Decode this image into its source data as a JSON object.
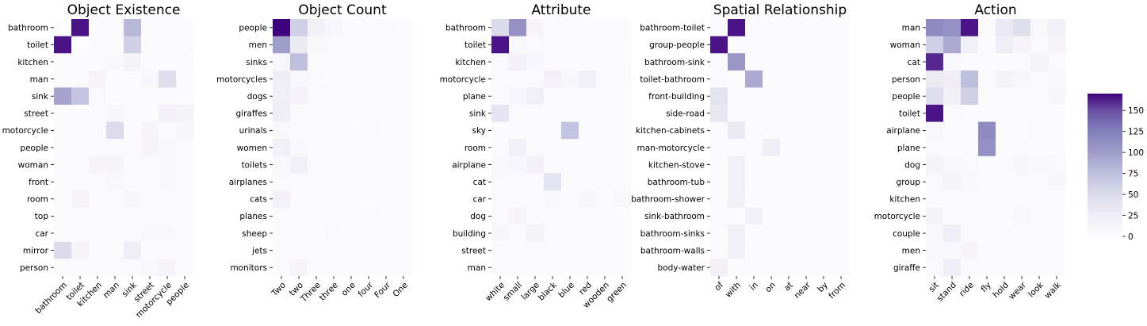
{
  "colors": {
    "low": "#fcfbfd",
    "high": "#3f007d",
    "tick": "#000000"
  },
  "chart_data": [
    {
      "type": "heatmap",
      "title": "Object Existence",
      "rows": [
        "bathroom",
        "toilet",
        "kitchen",
        "man",
        "sink",
        "street",
        "motorcycle",
        "people",
        "woman",
        "front",
        "room",
        "top",
        "car",
        "mirror",
        "person"
      ],
      "cols": [
        "bathroom",
        "toilet",
        "kitchen",
        "man",
        "sink",
        "street",
        "motorcycle",
        "people"
      ],
      "values": [
        [
          0,
          165,
          2,
          3,
          80,
          2,
          1,
          2
        ],
        [
          165,
          0,
          3,
          2,
          60,
          1,
          1,
          2
        ],
        [
          2,
          2,
          1,
          8,
          15,
          2,
          2,
          5
        ],
        [
          5,
          6,
          12,
          2,
          2,
          10,
          45,
          4
        ],
        [
          95,
          70,
          6,
          2,
          1,
          2,
          3,
          2
        ],
        [
          2,
          2,
          2,
          10,
          3,
          2,
          18,
          15
        ],
        [
          3,
          2,
          4,
          50,
          2,
          12,
          3,
          10
        ],
        [
          3,
          3,
          6,
          6,
          3,
          12,
          8,
          3
        ],
        [
          5,
          4,
          12,
          12,
          4,
          6,
          8,
          3
        ],
        [
          3,
          3,
          3,
          8,
          3,
          5,
          7,
          3
        ],
        [
          3,
          12,
          4,
          6,
          10,
          3,
          3,
          2
        ],
        [
          4,
          6,
          6,
          4,
          4,
          4,
          4,
          3
        ],
        [
          3,
          3,
          3,
          3,
          3,
          8,
          8,
          2
        ],
        [
          50,
          12,
          3,
          4,
          25,
          2,
          2,
          2
        ],
        [
          3,
          3,
          3,
          3,
          4,
          8,
          12,
          3
        ]
      ]
    },
    {
      "type": "heatmap",
      "title": "Object Count",
      "rows": [
        "people",
        "men",
        "sinks",
        "motorcycles",
        "dogs",
        "giraffes",
        "urinals",
        "women",
        "toilets",
        "airplanes",
        "cats",
        "planes",
        "sheep",
        "jets",
        "monitors"
      ],
      "cols": [
        "Two",
        "two",
        "Three",
        "three",
        "one",
        "four",
        "Four",
        "One"
      ],
      "values": [
        [
          170,
          60,
          20,
          10,
          2,
          2,
          5,
          2
        ],
        [
          100,
          30,
          8,
          5,
          1,
          3,
          3,
          2
        ],
        [
          10,
          75,
          4,
          3,
          1,
          2,
          1,
          1
        ],
        [
          25,
          8,
          5,
          2,
          1,
          2,
          1,
          1
        ],
        [
          22,
          14,
          4,
          3,
          1,
          1,
          1,
          1
        ],
        [
          25,
          6,
          6,
          3,
          1,
          2,
          3,
          1
        ],
        [
          8,
          6,
          6,
          3,
          2,
          5,
          2,
          1
        ],
        [
          22,
          8,
          3,
          2,
          1,
          2,
          1,
          1
        ],
        [
          8,
          20,
          4,
          2,
          1,
          2,
          1,
          1
        ],
        [
          5,
          3,
          5,
          4,
          1,
          2,
          4,
          1
        ],
        [
          18,
          6,
          3,
          2,
          1,
          1,
          1,
          1
        ],
        [
          5,
          3,
          2,
          2,
          1,
          5,
          1,
          1
        ],
        [
          5,
          4,
          2,
          6,
          1,
          2,
          1,
          1
        ],
        [
          5,
          3,
          2,
          2,
          1,
          4,
          4,
          1
        ],
        [
          4,
          12,
          2,
          2,
          1,
          2,
          1,
          1
        ]
      ]
    },
    {
      "type": "heatmap",
      "title": "Attribute",
      "rows": [
        "bathroom",
        "toilet",
        "kitchen",
        "motorcycle",
        "plane",
        "sink",
        "sky",
        "room",
        "airplane",
        "cat",
        "car",
        "dog",
        "building",
        "street",
        "man"
      ],
      "cols": [
        "white",
        "small",
        "large",
        "black",
        "blue",
        "red",
        "wooden",
        "green"
      ],
      "values": [
        [
          50,
          110,
          12,
          4,
          3,
          2,
          2,
          3
        ],
        [
          165,
          8,
          5,
          2,
          2,
          1,
          2,
          1
        ],
        [
          5,
          18,
          10,
          3,
          2,
          2,
          2,
          1
        ],
        [
          3,
          4,
          4,
          18,
          10,
          20,
          3,
          6
        ],
        [
          3,
          10,
          22,
          3,
          2,
          3,
          1,
          1
        ],
        [
          38,
          6,
          4,
          2,
          1,
          2,
          1,
          1
        ],
        [
          3,
          2,
          2,
          3,
          70,
          2,
          1,
          1
        ],
        [
          4,
          20,
          5,
          3,
          2,
          2,
          1,
          1
        ],
        [
          8,
          10,
          18,
          4,
          3,
          4,
          2,
          1
        ],
        [
          5,
          4,
          4,
          40,
          2,
          2,
          1,
          1
        ],
        [
          4,
          4,
          4,
          8,
          4,
          10,
          2,
          8
        ],
        [
          6,
          12,
          6,
          3,
          2,
          2,
          1,
          1
        ],
        [
          10,
          4,
          15,
          2,
          1,
          2,
          2,
          1
        ],
        [
          3,
          3,
          3,
          2,
          1,
          2,
          1,
          1
        ],
        [
          3,
          2,
          2,
          2,
          1,
          2,
          1,
          1
        ]
      ]
    },
    {
      "type": "heatmap",
      "title": "Spatial Relationship",
      "rows": [
        "bathroom-toilet",
        "group-people",
        "bathroom-sink",
        "toilet-bathroom",
        "front-building",
        "side-road",
        "kitchen-cabinets",
        "man-motorcycle",
        "kitchen-stove",
        "bathroom-tub",
        "bathroom-shower",
        "sink-bathroom",
        "bathroom-sinks",
        "bathroom-walls",
        "body-water"
      ],
      "cols": [
        "of",
        "with",
        "in",
        "on",
        "at",
        "near",
        "by",
        "from"
      ],
      "values": [
        [
          5,
          165,
          3,
          2,
          1,
          1,
          1,
          1
        ],
        [
          165,
          3,
          2,
          2,
          1,
          1,
          1,
          1
        ],
        [
          4,
          105,
          2,
          2,
          1,
          1,
          1,
          1
        ],
        [
          3,
          2,
          90,
          2,
          1,
          1,
          1,
          1
        ],
        [
          40,
          3,
          2,
          2,
          1,
          1,
          1,
          1
        ],
        [
          35,
          3,
          2,
          2,
          1,
          1,
          1,
          1
        ],
        [
          3,
          30,
          2,
          2,
          1,
          1,
          1,
          1
        ],
        [
          3,
          2,
          2,
          25,
          1,
          1,
          1,
          1
        ],
        [
          3,
          22,
          2,
          2,
          1,
          1,
          1,
          1
        ],
        [
          3,
          22,
          2,
          2,
          1,
          1,
          1,
          1
        ],
        [
          3,
          20,
          2,
          2,
          1,
          1,
          1,
          1
        ],
        [
          3,
          2,
          20,
          2,
          1,
          1,
          1,
          1
        ],
        [
          3,
          20,
          2,
          2,
          1,
          1,
          1,
          1
        ],
        [
          3,
          18,
          2,
          2,
          1,
          1,
          1,
          1
        ],
        [
          18,
          2,
          2,
          2,
          1,
          1,
          1,
          1
        ]
      ]
    },
    {
      "type": "heatmap",
      "title": "Action",
      "rows": [
        "man",
        "woman",
        "cat",
        "person",
        "people",
        "toilet",
        "airplane",
        "plane",
        "dog",
        "group",
        "kitchen",
        "motorcycle",
        "couple",
        "men",
        "giraffe"
      ],
      "cols": [
        "sit",
        "stand",
        "ride",
        "fly",
        "hold",
        "wear",
        "look",
        "walk"
      ],
      "values": [
        [
          115,
          110,
          165,
          5,
          30,
          45,
          8,
          20
        ],
        [
          60,
          90,
          20,
          3,
          25,
          12,
          6,
          12
        ],
        [
          160,
          8,
          2,
          2,
          2,
          3,
          12,
          3
        ],
        [
          30,
          25,
          75,
          3,
          15,
          10,
          5,
          8
        ],
        [
          45,
          20,
          60,
          3,
          5,
          4,
          4,
          10
        ],
        [
          165,
          5,
          2,
          2,
          2,
          2,
          2,
          2
        ],
        [
          8,
          3,
          3,
          115,
          2,
          2,
          6,
          3
        ],
        [
          6,
          3,
          3,
          110,
          2,
          3,
          3,
          2
        ],
        [
          15,
          8,
          5,
          2,
          3,
          10,
          8,
          5
        ],
        [
          6,
          12,
          8,
          3,
          5,
          5,
          3,
          10
        ],
        [
          4,
          3,
          2,
          2,
          6,
          3,
          3,
          2
        ],
        [
          15,
          4,
          4,
          2,
          2,
          8,
          3,
          3
        ],
        [
          8,
          25,
          4,
          2,
          2,
          3,
          3,
          3
        ],
        [
          8,
          8,
          12,
          2,
          3,
          4,
          3,
          3
        ],
        [
          6,
          25,
          3,
          2,
          2,
          2,
          3,
          3
        ]
      ]
    }
  ],
  "colorbar": {
    "min": 0,
    "max": 170,
    "ticks": [
      0,
      25,
      50,
      75,
      100,
      125,
      150
    ]
  }
}
